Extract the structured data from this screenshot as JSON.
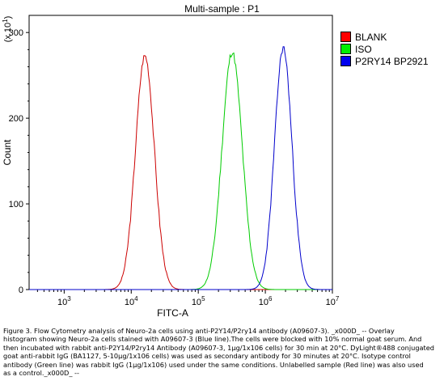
{
  "chart_data": {
    "type": "line",
    "title": "Multi-sample : P1",
    "xlabel": "FITC-A",
    "ylabel": "Count",
    "y_multiplier_label": "(x 10",
    "y_multiplier_exp": "1",
    "x_scale": "log",
    "xlim": [
      300,
      10000000
    ],
    "ylim": [
      0,
      320
    ],
    "x_ticks": [
      {
        "value": 1000,
        "base": "10",
        "exp": "3"
      },
      {
        "value": 10000,
        "base": "10",
        "exp": "4"
      },
      {
        "value": 100000,
        "base": "10",
        "exp": "5"
      },
      {
        "value": 1000000,
        "base": "10",
        "exp": "6"
      },
      {
        "value": 10000000,
        "base": "10",
        "exp": "7"
      }
    ],
    "y_ticks": [
      0,
      100,
      200,
      300
    ],
    "grid": false,
    "legend_position": "right",
    "series": [
      {
        "name": "BLANK",
        "color": "#cc0000",
        "peak_x": 16000,
        "peak_y": 273,
        "log_sigma": 0.14,
        "noise_seed": 3
      },
      {
        "name": "ISO",
        "color": "#00cc00",
        "peak_x": 320000,
        "peak_y": 277,
        "log_sigma": 0.15,
        "noise_seed": 11
      },
      {
        "name": "P2RY14 BP2921",
        "color": "#0000cc",
        "peak_x": 1850000,
        "peak_y": 282,
        "log_sigma": 0.13,
        "noise_seed": 23
      }
    ]
  },
  "caption_lines": [
    "Figure 3. Flow Cytometry analysis of Neuro-2a cells using anti-P2Y14/P2ry14 antibody (A09607-3). _x000D_ -- Overlay",
    "histogram showing Neuro-2a cells stained with A09607-3 (Blue line).The cells were blocked with 10% normal goat serum. And",
    "then incubated with rabbit anti-P2Y14/P2ry14 Antibody (A09607-3, 1μg/1x106 cells) for 30 min at 20°C. DyLight®488 conjugated",
    "goat anti-rabbit IgG (BA1127, 5-10μg/1x106 cells) was used as secondary antibody for 30 minutes at 20°C. Isotype control",
    "antibody (Green line) was rabbit IgG (1μg/1x106) used under the same conditions. Unlabelled sample (Red line) was also used",
    "as a control._x000D_ --"
  ]
}
